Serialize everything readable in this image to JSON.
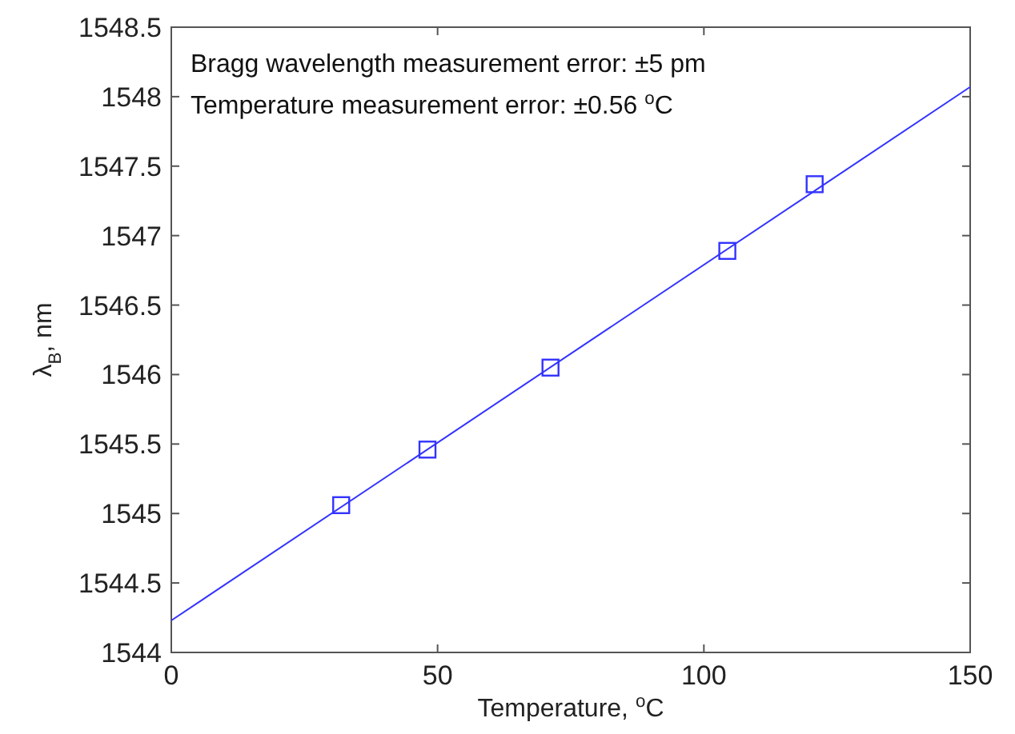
{
  "chart_data": {
    "type": "scatter",
    "xlabel": "Temperature, $^{o}$C",
    "ylabel": "λ$_{B}$, nm",
    "xlim": [
      0,
      150
    ],
    "ylim": [
      1544,
      1548.5
    ],
    "xticks": [
      0,
      50,
      100,
      150
    ],
    "yticks": [
      1544,
      1544.5,
      1545,
      1545.5,
      1546,
      1546.5,
      1547,
      1547.5,
      1548,
      1548.5
    ],
    "grid": false,
    "annotations": [
      "Bragg wavelength measurement error: ±5 pm",
      "Temperature measurement error: ±0.56 $^{o}$C"
    ],
    "series": [
      {
        "color": "#3333ff",
        "marker": "square",
        "x": [
          31.9,
          48.1,
          71.2,
          104.4,
          120.8
        ],
        "values": [
          1545.06,
          1545.46,
          1546.05,
          1546.89,
          1547.37
        ]
      },
      {
        "type": "line",
        "color": "#3333ff",
        "marker": "none",
        "line_style": "solid",
        "x": [
          0,
          150
        ],
        "values": [
          1544.23,
          1548.07
        ]
      }
    ]
  }
}
